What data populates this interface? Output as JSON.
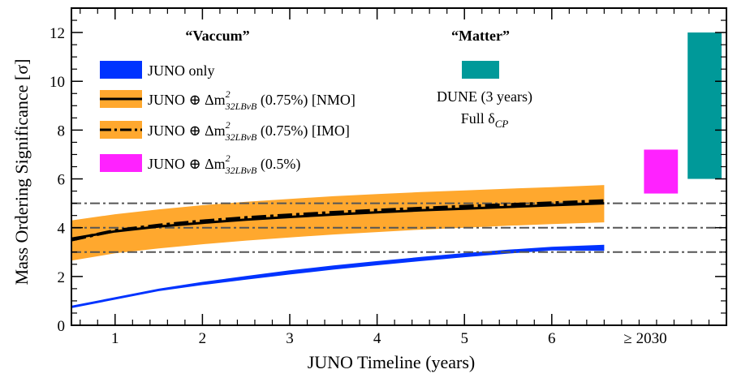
{
  "chart_data": {
    "type": "area",
    "xlabel": "JUNO Timeline (years)",
    "ylabel": "Mass Ordering Significance [σ]",
    "xlim": [
      0.5,
      8.0
    ],
    "ylim": [
      0,
      13
    ],
    "x_ticks": [
      "1",
      "2",
      "3",
      "4",
      "5",
      "6"
    ],
    "x_extra_tick_label": "≥ 2030",
    "y_ticks": [
      "0",
      "2",
      "4",
      "6",
      "8",
      "10",
      "12"
    ],
    "reference_lines": [
      3,
      4,
      5
    ],
    "region_titles": {
      "vacuum": "“Vaccum”",
      "matter": "“Matter”"
    },
    "legend": [
      {
        "id": "juno_only",
        "prefix": "JUNO only",
        "suffix": ""
      },
      {
        "id": "nmo",
        "prefix": "JUNO ⊕ Δm",
        "sup": "2",
        "sub": "32LBνB",
        "suffix": " (0.75%) [NMO]"
      },
      {
        "id": "imo",
        "prefix": "JUNO ⊕ Δm",
        "sup": "2",
        "sub": "32LBνB",
        "suffix": " (0.75%) [IMO]"
      },
      {
        "id": "half",
        "prefix": "JUNO ⊕ Δm",
        "sup": "2",
        "sub": "32LBνB",
        "suffix": " (0.5%)"
      }
    ],
    "dune_annotation": {
      "line1": "DUNE (3 years)",
      "line2_prefix": "Full δ",
      "line2_sub": "CP"
    },
    "series": [
      {
        "name": "JUNO only",
        "x": [
          0.5,
          1,
          1.5,
          2,
          2.5,
          3,
          3.5,
          4,
          4.5,
          5,
          5.5,
          6,
          6.6
        ],
        "lower": [
          0.7,
          1.05,
          1.4,
          1.65,
          1.87,
          2.08,
          2.28,
          2.46,
          2.63,
          2.79,
          2.94,
          3.07,
          3.05
        ],
        "upper": [
          0.8,
          1.15,
          1.5,
          1.78,
          2.02,
          2.25,
          2.45,
          2.63,
          2.8,
          2.96,
          3.1,
          3.22,
          3.3
        ],
        "color": "#0033ff"
      },
      {
        "name": "JUNO ⊕ Δm²32LBνB (0.75%) band",
        "x": [
          0.5,
          1,
          1.5,
          2,
          2.5,
          3,
          3.5,
          4,
          4.5,
          5,
          5.5,
          6,
          6.6
        ],
        "lower": [
          2.65,
          2.95,
          3.15,
          3.32,
          3.47,
          3.6,
          3.72,
          3.82,
          3.92,
          4.0,
          4.08,
          4.15,
          4.22
        ],
        "upper": [
          4.3,
          4.55,
          4.75,
          4.92,
          5.06,
          5.18,
          5.29,
          5.38,
          5.46,
          5.53,
          5.6,
          5.66,
          5.75
        ],
        "color": "#ffa82e"
      },
      {
        "name": "NMO",
        "x": [
          0.5,
          1,
          1.5,
          2,
          2.5,
          3,
          3.5,
          4,
          4.5,
          5,
          5.5,
          6,
          6.6
        ],
        "y": [
          3.55,
          3.85,
          4.05,
          4.2,
          4.33,
          4.44,
          4.54,
          4.63,
          4.71,
          4.78,
          4.85,
          4.92,
          5.0
        ],
        "color": "#000000"
      },
      {
        "name": "IMO",
        "x": [
          0.5,
          1,
          1.5,
          2,
          2.5,
          3,
          3.5,
          4,
          4.5,
          5,
          5.5,
          6,
          6.6
        ],
        "y": [
          3.5,
          3.88,
          4.1,
          4.27,
          4.41,
          4.52,
          4.62,
          4.71,
          4.79,
          4.87,
          4.94,
          5.01,
          5.1
        ],
        "color": "#000000"
      }
    ],
    "bars": [
      {
        "name": "JUNO ⊕ Δm²32LBνB (0.5%)",
        "x": [
          7.0,
          7.5
        ],
        "y": [
          5.4,
          7.2
        ],
        "color": "#ff22ff"
      },
      {
        "name": "DUNE (3 years) Full δCP",
        "x": [
          7.5,
          8.0
        ],
        "y": [
          6.0,
          12.0
        ],
        "color": "#009999"
      }
    ],
    "grid": false
  }
}
